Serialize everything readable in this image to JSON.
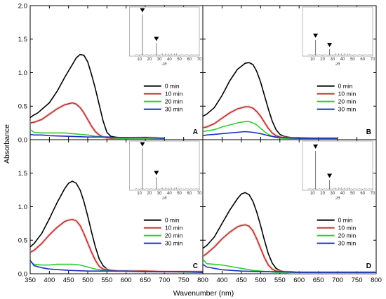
{
  "figure": {
    "ylabel": "Absorbance",
    "xlabel": "Wavenumber (nm)",
    "x_ticks": [
      "350",
      "400",
      "450",
      "500",
      "550",
      "600",
      "650",
      "700",
      "750",
      "800"
    ],
    "y_ticks": [
      "0.0",
      "0.5",
      "1.0",
      "1.5",
      "2.0"
    ]
  },
  "chart_data": [
    {
      "type": "line",
      "panel": "A",
      "xlim": [
        350,
        800
      ],
      "ylim": [
        0,
        2.0
      ],
      "legend": [
        "0 min",
        "10 min",
        "20 min",
        "30 min"
      ],
      "series": [
        {
          "name": "0 min",
          "color": "#000000",
          "x": [
            350,
            360,
            370,
            380,
            400,
            420,
            440,
            460,
            470,
            480,
            490,
            500,
            510,
            520,
            530,
            540,
            550,
            560,
            580,
            600,
            650,
            700
          ],
          "y": [
            0.33,
            0.37,
            0.4,
            0.45,
            0.55,
            0.72,
            0.93,
            1.12,
            1.22,
            1.27,
            1.26,
            1.16,
            0.97,
            0.76,
            0.52,
            0.28,
            0.11,
            0.05,
            0.03,
            0.02,
            0.03,
            0.02
          ]
        },
        {
          "name": "10 min",
          "color": "#b03a2e",
          "x": [
            350,
            360,
            380,
            400,
            420,
            440,
            460,
            470,
            480,
            490,
            500,
            510,
            520,
            530,
            540,
            550,
            560,
            580,
            600,
            650,
            700
          ],
          "y": [
            0.25,
            0.26,
            0.3,
            0.38,
            0.46,
            0.52,
            0.55,
            0.53,
            0.48,
            0.4,
            0.3,
            0.2,
            0.12,
            0.07,
            0.04,
            0.03,
            0.02,
            0.02,
            0.02,
            0.03,
            0.02
          ]
        },
        {
          "name": "20 min",
          "color": "#33cc33",
          "x": [
            350,
            360,
            380,
            400,
            420,
            440,
            460,
            480,
            500,
            520,
            540,
            560,
            580,
            600,
            650,
            700
          ],
          "y": [
            0.15,
            0.11,
            0.1,
            0.1,
            0.1,
            0.1,
            0.09,
            0.08,
            0.07,
            0.05,
            0.04,
            0.03,
            0.02,
            0.02,
            0.02,
            0.02
          ]
        },
        {
          "name": "30 min",
          "color": "#1f2fbf",
          "x": [
            350,
            360,
            380,
            400,
            450,
            500,
            550,
            600,
            650,
            700
          ],
          "y": [
            0.08,
            0.07,
            0.07,
            0.06,
            0.05,
            0.04,
            0.04,
            0.03,
            0.03,
            0.02
          ]
        }
      ],
      "inset": {
        "x_ticks": [
          "10",
          "20",
          "30",
          "40",
          "50",
          "60",
          "70"
        ],
        "xlabel": "2θ",
        "peaks": [
          {
            "x": 13,
            "h": 0.9
          },
          {
            "x": 27,
            "h": 0.28
          }
        ]
      }
    },
    {
      "type": "line",
      "panel": "B",
      "xlim": [
        350,
        800
      ],
      "ylim": [
        0,
        2.0
      ],
      "legend": [
        "0 min",
        "10 min",
        "20 min",
        "30 min"
      ],
      "series": [
        {
          "name": "0 min",
          "color": "#000000",
          "x": [
            350,
            360,
            380,
            400,
            420,
            440,
            460,
            470,
            480,
            490,
            500,
            510,
            520,
            530,
            540,
            550,
            560,
            580,
            600,
            650,
            700
          ],
          "y": [
            0.35,
            0.38,
            0.48,
            0.66,
            0.88,
            1.05,
            1.14,
            1.15,
            1.12,
            1.02,
            0.86,
            0.66,
            0.46,
            0.28,
            0.15,
            0.08,
            0.05,
            0.03,
            0.03,
            0.02,
            0.02
          ]
        },
        {
          "name": "10 min",
          "color": "#b03a2e",
          "x": [
            350,
            360,
            380,
            400,
            420,
            440,
            460,
            470,
            480,
            490,
            500,
            510,
            520,
            530,
            540,
            550,
            560,
            580,
            600,
            650,
            700
          ],
          "y": [
            0.18,
            0.19,
            0.24,
            0.32,
            0.4,
            0.46,
            0.49,
            0.49,
            0.47,
            0.42,
            0.35,
            0.26,
            0.17,
            0.1,
            0.06,
            0.04,
            0.03,
            0.02,
            0.02,
            0.02,
            0.02
          ]
        },
        {
          "name": "20 min",
          "color": "#33cc33",
          "x": [
            350,
            360,
            380,
            400,
            420,
            440,
            460,
            470,
            480,
            490,
            500,
            510,
            520,
            530,
            540,
            560,
            600,
            650,
            700
          ],
          "y": [
            0.12,
            0.13,
            0.15,
            0.19,
            0.22,
            0.25,
            0.27,
            0.27,
            0.25,
            0.22,
            0.17,
            0.12,
            0.08,
            0.05,
            0.03,
            0.02,
            0.02,
            0.02,
            0.02
          ]
        },
        {
          "name": "30 min",
          "color": "#1f2fbf",
          "x": [
            350,
            360,
            380,
            400,
            420,
            440,
            460,
            480,
            500,
            520,
            540,
            560,
            600,
            650,
            700
          ],
          "y": [
            0.06,
            0.07,
            0.08,
            0.09,
            0.1,
            0.11,
            0.12,
            0.11,
            0.09,
            0.06,
            0.04,
            0.03,
            0.02,
            0.02,
            0.02
          ]
        }
      ],
      "inset": {
        "x_ticks": [
          "10",
          "20",
          "30",
          "40",
          "50",
          "60",
          "70"
        ],
        "xlabel": "2θ",
        "peaks": [
          {
            "x": 13,
            "h": 0.35
          },
          {
            "x": 27,
            "h": 0.15
          }
        ]
      }
    },
    {
      "type": "line",
      "panel": "C",
      "xlim": [
        350,
        800
      ],
      "ylim": [
        0,
        2.0
      ],
      "legend": [
        "0 min",
        "10 min",
        "20 min",
        "30 min"
      ],
      "series": [
        {
          "name": "0 min",
          "color": "#000000",
          "x": [
            350,
            360,
            380,
            400,
            420,
            440,
            450,
            460,
            470,
            480,
            490,
            500,
            510,
            520,
            530,
            540,
            550,
            560,
            580,
            600,
            650,
            700,
            800
          ],
          "y": [
            0.4,
            0.45,
            0.6,
            0.82,
            1.06,
            1.27,
            1.35,
            1.38,
            1.35,
            1.25,
            1.08,
            0.86,
            0.62,
            0.4,
            0.22,
            0.12,
            0.07,
            0.05,
            0.04,
            0.04,
            0.04,
            0.03,
            0.03
          ]
        },
        {
          "name": "10 min",
          "color": "#b03a2e",
          "x": [
            350,
            360,
            380,
            400,
            420,
            440,
            450,
            460,
            470,
            480,
            490,
            500,
            510,
            520,
            530,
            540,
            560,
            580,
            600,
            650,
            700,
            800
          ],
          "y": [
            0.32,
            0.35,
            0.45,
            0.58,
            0.69,
            0.78,
            0.8,
            0.81,
            0.79,
            0.72,
            0.6,
            0.46,
            0.32,
            0.2,
            0.11,
            0.07,
            0.05,
            0.04,
            0.04,
            0.04,
            0.03,
            0.03
          ]
        },
        {
          "name": "20 min",
          "color": "#33cc33",
          "x": [
            350,
            360,
            380,
            400,
            420,
            440,
            460,
            480,
            500,
            520,
            540,
            560,
            600,
            650,
            700,
            800
          ],
          "y": [
            0.18,
            0.14,
            0.13,
            0.13,
            0.14,
            0.14,
            0.14,
            0.13,
            0.1,
            0.07,
            0.05,
            0.04,
            0.04,
            0.03,
            0.03,
            0.02
          ]
        },
        {
          "name": "30 min",
          "color": "#1f2fbf",
          "x": [
            350,
            360,
            380,
            400,
            450,
            500,
            550,
            600,
            650,
            700,
            750,
            800
          ],
          "y": [
            0.2,
            0.12,
            0.09,
            0.07,
            0.05,
            0.04,
            0.04,
            0.04,
            0.03,
            0.03,
            0.03,
            0.02
          ]
        }
      ],
      "inset": {
        "x_ticks": [
          "10",
          "20",
          "30",
          "40",
          "50",
          "60",
          "70"
        ],
        "xlabel": "2θ",
        "peaks": [
          {
            "x": 13,
            "h": 0.9
          },
          {
            "x": 27,
            "h": 0.28
          }
        ]
      }
    },
    {
      "type": "line",
      "panel": "D",
      "xlim": [
        350,
        800
      ],
      "ylim": [
        0,
        2.0
      ],
      "legend": [
        "0 min",
        "10 min",
        "20 min",
        "30 min"
      ],
      "series": [
        {
          "name": "0 min",
          "color": "#000000",
          "x": [
            350,
            360,
            380,
            400,
            420,
            440,
            450,
            460,
            470,
            480,
            490,
            500,
            510,
            520,
            530,
            540,
            550,
            560,
            580,
            600,
            650,
            700,
            800
          ],
          "y": [
            0.38,
            0.42,
            0.55,
            0.75,
            0.95,
            1.12,
            1.19,
            1.21,
            1.18,
            1.08,
            0.92,
            0.72,
            0.5,
            0.3,
            0.16,
            0.08,
            0.05,
            0.03,
            0.03,
            0.02,
            0.02,
            0.02,
            0.02
          ]
        },
        {
          "name": "10 min",
          "color": "#b03a2e",
          "x": [
            350,
            360,
            380,
            400,
            420,
            440,
            450,
            460,
            470,
            480,
            490,
            500,
            510,
            520,
            530,
            540,
            560,
            580,
            600,
            650,
            700,
            800
          ],
          "y": [
            0.26,
            0.3,
            0.4,
            0.52,
            0.62,
            0.7,
            0.72,
            0.73,
            0.71,
            0.64,
            0.52,
            0.38,
            0.24,
            0.13,
            0.07,
            0.04,
            0.03,
            0.02,
            0.02,
            0.02,
            0.02,
            0.02
          ]
        },
        {
          "name": "20 min",
          "color": "#33cc33",
          "x": [
            350,
            360,
            380,
            400,
            420,
            440,
            460,
            480,
            500,
            520,
            540,
            560,
            600,
            650,
            700,
            800
          ],
          "y": [
            0.22,
            0.15,
            0.14,
            0.13,
            0.11,
            0.09,
            0.07,
            0.05,
            0.04,
            0.03,
            0.02,
            0.02,
            0.02,
            0.02,
            0.02,
            0.02
          ]
        },
        {
          "name": "30 min",
          "color": "#1f2fbf",
          "x": [
            350,
            360,
            380,
            400,
            450,
            500,
            550,
            600,
            650,
            700,
            800
          ],
          "y": [
            0.14,
            0.1,
            0.08,
            0.06,
            0.04,
            0.03,
            0.03,
            0.02,
            0.02,
            0.02,
            0.02
          ]
        }
      ],
      "inset": {
        "x_ticks": [
          "10",
          "20",
          "30",
          "40",
          "50",
          "60",
          "70"
        ],
        "xlabel": "2θ",
        "peaks": [
          {
            "x": 13,
            "h": 0.85
          },
          {
            "x": 27,
            "h": 0.22
          }
        ]
      }
    }
  ]
}
